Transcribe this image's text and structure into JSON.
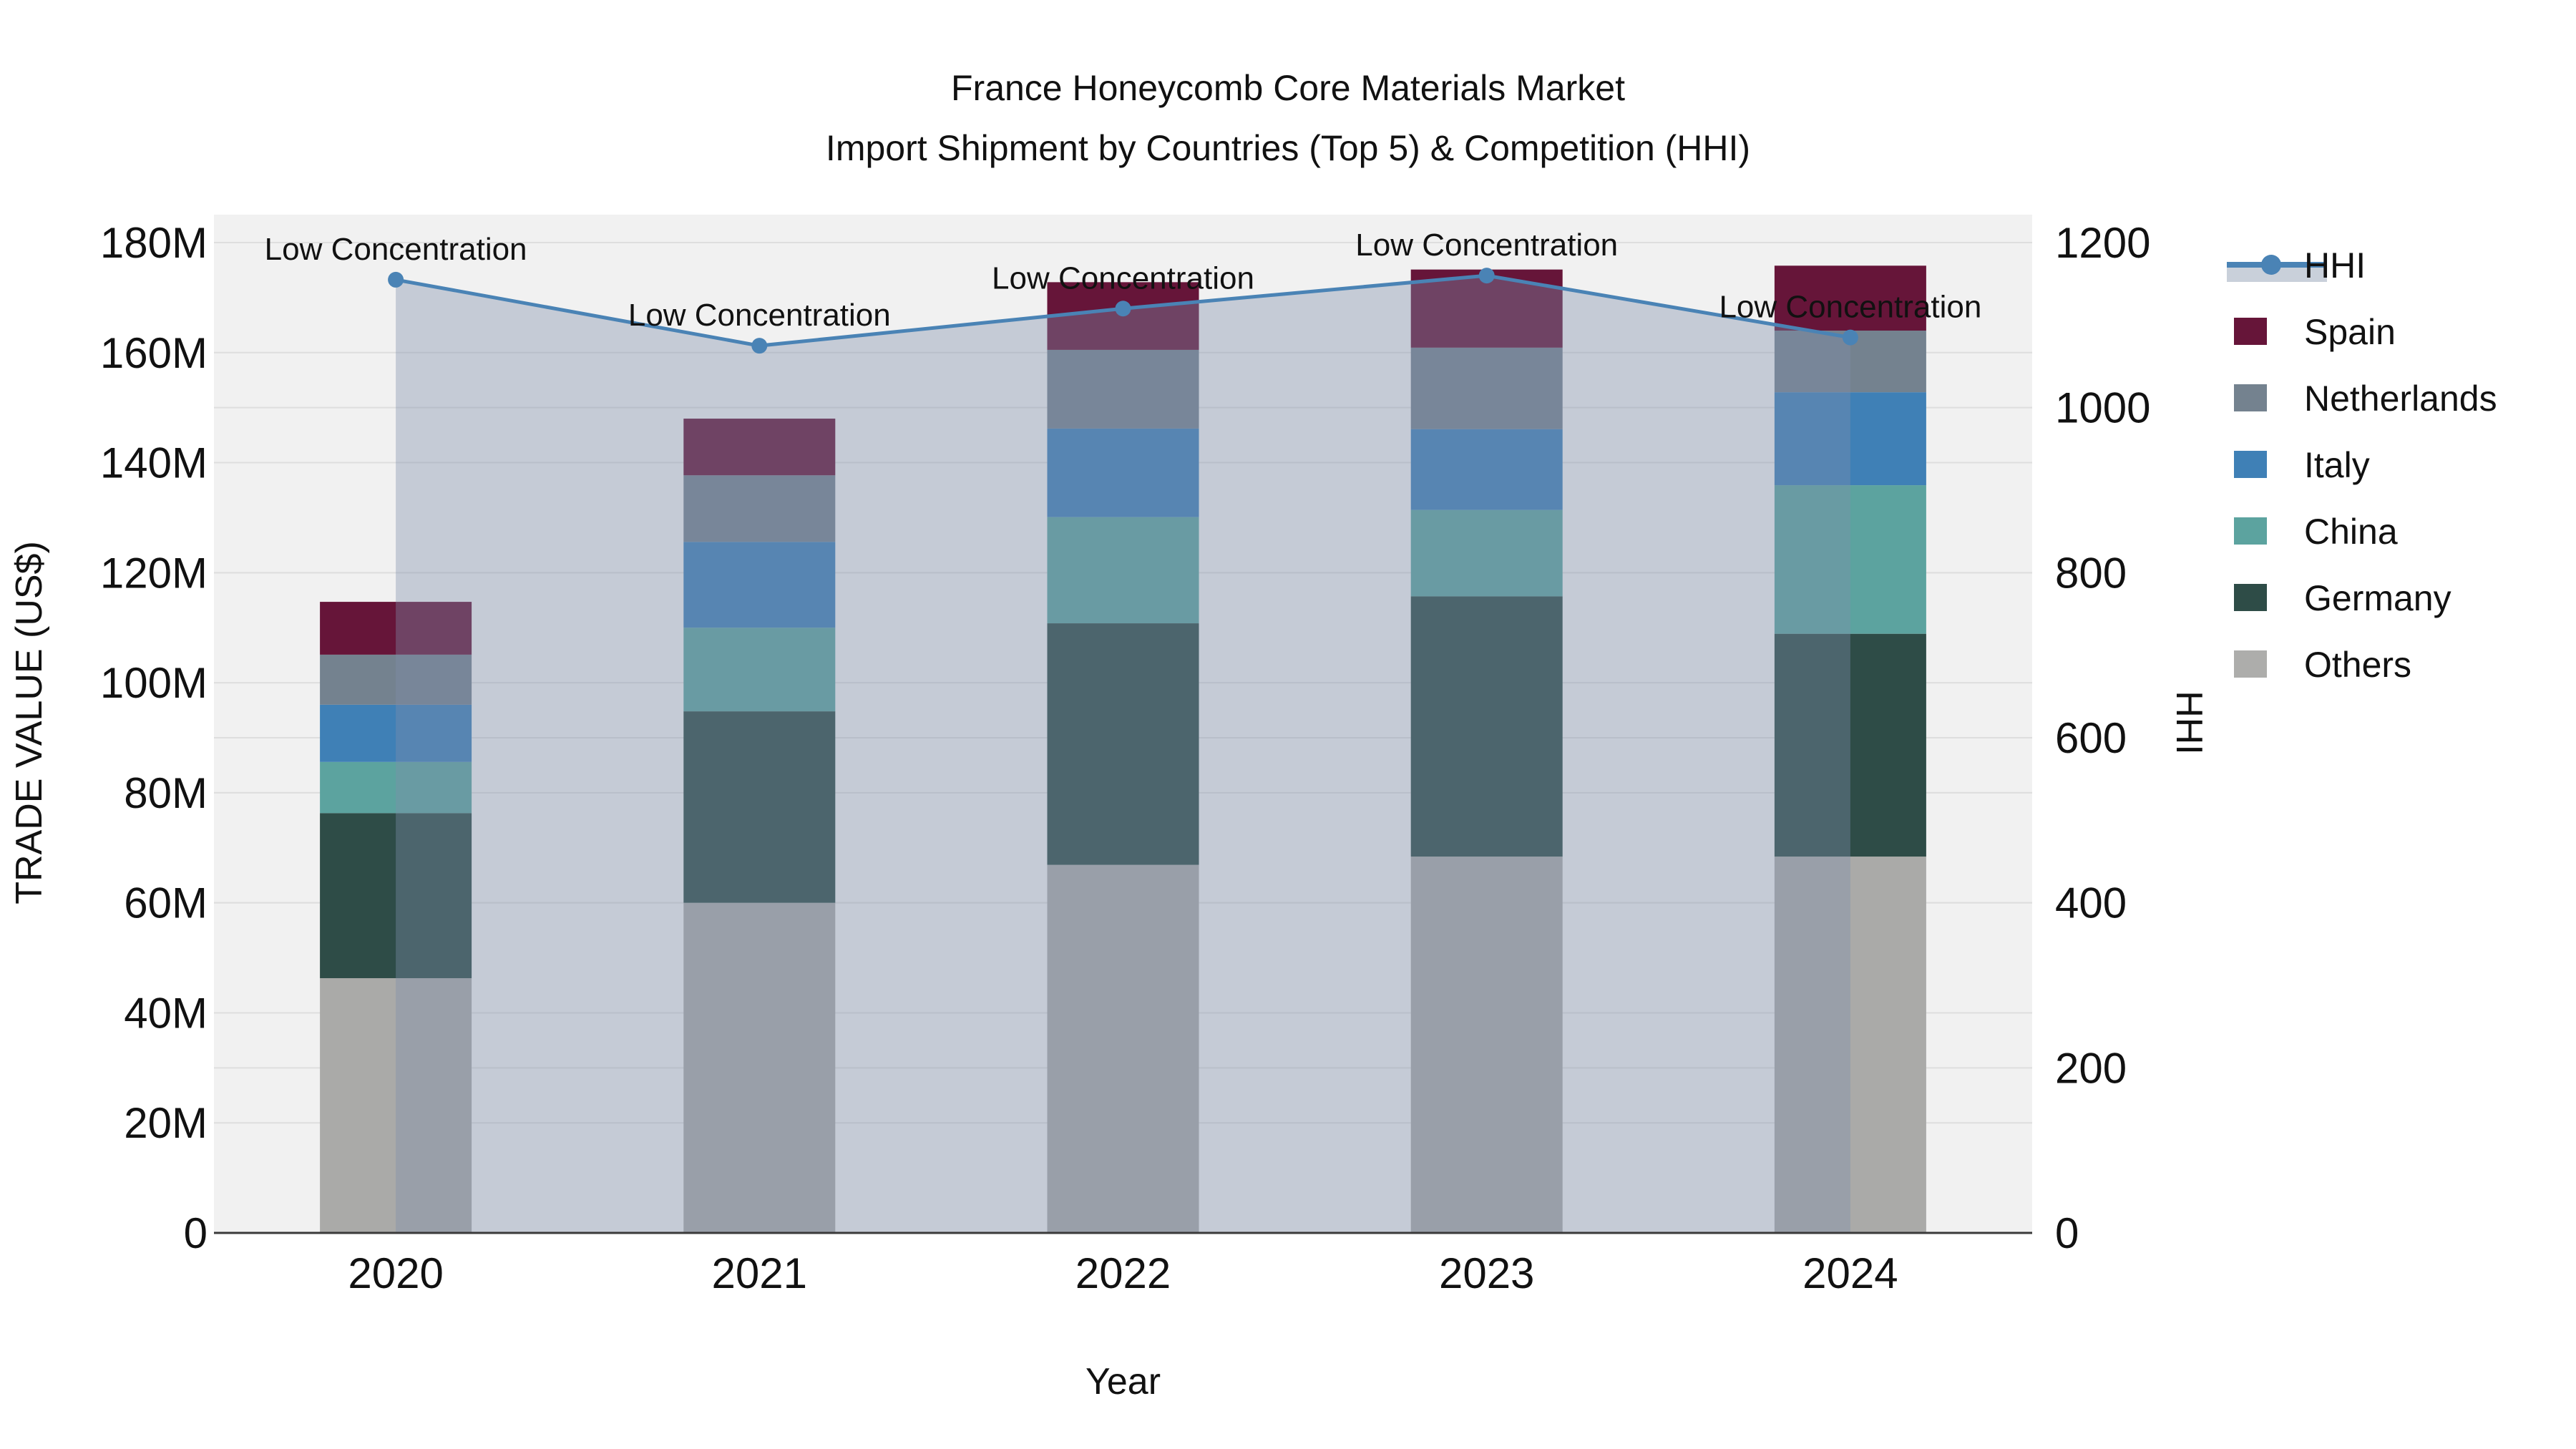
{
  "chart_data": {
    "type": "bar",
    "subtype": "stacked-bar-with-line",
    "title": {
      "line1": "France Honeycomb Core Materials Market",
      "line2": "Import Shipment by Countries (Top 5) & Competition (HHI)"
    },
    "categories": [
      "2020",
      "2021",
      "2022",
      "2023",
      "2024"
    ],
    "xlabel": "Year",
    "ylabel_left": "TRADE VALUE (US$)",
    "ylabel_right": "HHI",
    "ylim_left_millions": [
      0,
      180
    ],
    "ylim_right": [
      0,
      1200
    ],
    "series": [
      {
        "name": "Others",
        "color": "#aaaaa8",
        "values_millions": [
          46.3,
          60.0,
          66.9,
          68.4,
          68.4
        ]
      },
      {
        "name": "Germany",
        "color": "#2e4c47",
        "values_millions": [
          30.0,
          34.8,
          43.9,
          47.3,
          40.5
        ]
      },
      {
        "name": "China",
        "color": "#5ca39f",
        "values_millions": [
          9.3,
          15.2,
          19.3,
          15.7,
          27.0
        ]
      },
      {
        "name": "Italy",
        "color": "#3f80b6",
        "values_millions": [
          10.4,
          15.6,
          16.1,
          14.7,
          16.9
        ]
      },
      {
        "name": "Netherlands",
        "color": "#74828f",
        "values_millions": [
          9.1,
          12.1,
          14.3,
          14.8,
          11.2
        ]
      },
      {
        "name": "Spain",
        "color": "#661539",
        "values_millions": [
          9.6,
          10.3,
          12.3,
          14.2,
          11.8
        ]
      }
    ],
    "totals_millions": [
      114.7,
      148.0,
      172.8,
      175.1,
      175.8
    ],
    "hhi": {
      "name": "HHI",
      "values": [
        1155,
        1075,
        1120,
        1160,
        1085
      ],
      "line_color": "#4a83b5",
      "area_fill_color": "rgba(125,142,171,0.38)",
      "legend_band_color": "#c9d0da"
    },
    "annotations": [
      {
        "text": "Low Concentration",
        "category": "2020"
      },
      {
        "text": "Low Concentration",
        "category": "2021"
      },
      {
        "text": "Low Concentration",
        "category": "2022"
      },
      {
        "text": "Low Concentration",
        "category": "2023"
      },
      {
        "text": "Low Concentration",
        "category": "2024"
      }
    ],
    "axes": {
      "left": {
        "ticks": [
          "0",
          "20M",
          "40M",
          "60M",
          "80M",
          "100M",
          "120M",
          "140M",
          "160M",
          "180M"
        ]
      },
      "right": {
        "ticks": [
          "0",
          "200",
          "400",
          "600",
          "800",
          "1000",
          "1200"
        ]
      },
      "grid": true,
      "plot_bg": "#f1f1f1",
      "grid_color": "#dedede",
      "axisline_color": "#3a3a3a"
    },
    "legend": {
      "position": "right",
      "items": [
        {
          "label": "HHI",
          "marker": "line"
        },
        {
          "label": "Spain",
          "marker": "square",
          "color": "#661539"
        },
        {
          "label": "Netherlands",
          "marker": "square",
          "color": "#74828f"
        },
        {
          "label": "Italy",
          "marker": "square",
          "color": "#3f80b6"
        },
        {
          "label": "China",
          "marker": "square",
          "color": "#5ca39f"
        },
        {
          "label": "Germany",
          "marker": "square",
          "color": "#2e4c47"
        },
        {
          "label": "Others",
          "marker": "square",
          "color": "#adadab"
        }
      ]
    }
  }
}
